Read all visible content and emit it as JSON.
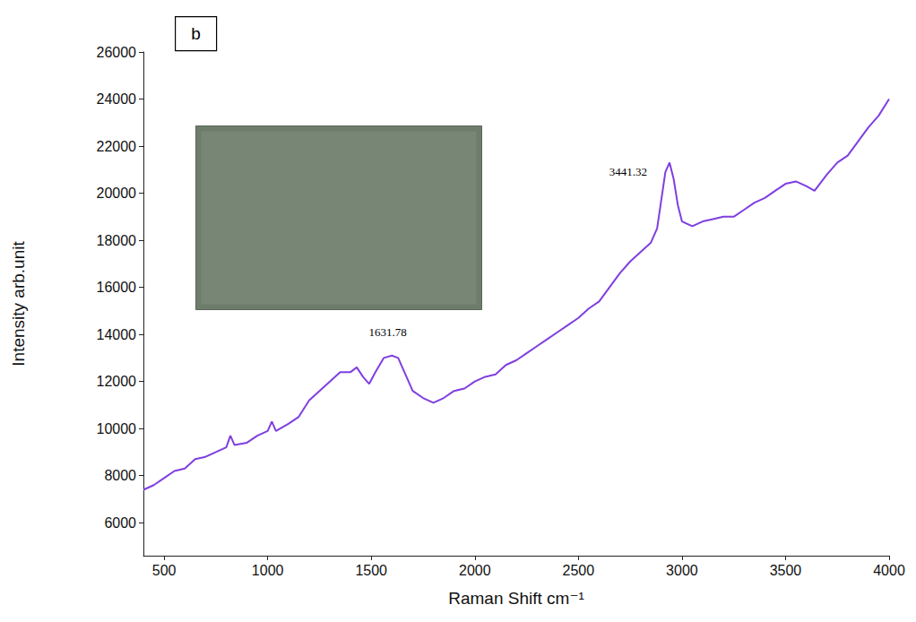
{
  "chart_data": {
    "type": "line",
    "panel_label": "b",
    "x_label": "Raman Shift cm⁻¹",
    "y_label": "Intensity arb.unit",
    "color": "#7f3fdf",
    "grid": false,
    "xlim": [
      400,
      4000
    ],
    "xticks": [
      500,
      1000,
      1500,
      2000,
      2500,
      3000,
      3500,
      4000
    ],
    "ylim": [
      4600,
      26000
    ],
    "yticks": [
      6000,
      8000,
      10000,
      12000,
      14000,
      16000,
      18000,
      20000,
      22000,
      24000,
      26000
    ],
    "x": [
      400,
      450,
      500,
      550,
      600,
      650,
      700,
      750,
      800,
      820,
      840,
      900,
      950,
      1000,
      1020,
      1040,
      1100,
      1150,
      1200,
      1250,
      1300,
      1350,
      1400,
      1430,
      1460,
      1490,
      1520,
      1560,
      1600,
      1630,
      1660,
      1700,
      1750,
      1800,
      1850,
      1900,
      1950,
      2000,
      2050,
      2100,
      2150,
      2200,
      2250,
      2300,
      2350,
      2400,
      2450,
      2500,
      2550,
      2600,
      2650,
      2700,
      2750,
      2800,
      2850,
      2880,
      2900,
      2920,
      2940,
      2960,
      2980,
      3000,
      3050,
      3100,
      3150,
      3200,
      3250,
      3300,
      3350,
      3400,
      3450,
      3500,
      3550,
      3600,
      3640,
      3700,
      3750,
      3800,
      3850,
      3900,
      3950,
      4000
    ],
    "values": [
      7400,
      7600,
      7900,
      8200,
      8300,
      8700,
      8800,
      9000,
      9200,
      9700,
      9300,
      9400,
      9700,
      9900,
      10300,
      9900,
      10200,
      10500,
      11200,
      11600,
      12000,
      12400,
      12400,
      12600,
      12200,
      11900,
      12400,
      13000,
      13100,
      13000,
      12400,
      11600,
      11300,
      11100,
      11300,
      11600,
      11700,
      12000,
      12200,
      12300,
      12700,
      12900,
      13200,
      13500,
      13800,
      14100,
      14400,
      14700,
      15100,
      15400,
      16000,
      16600,
      17100,
      17500,
      17900,
      18500,
      19700,
      20900,
      21300,
      20600,
      19500,
      18800,
      18600,
      18800,
      18900,
      19000,
      19000,
      19300,
      19600,
      19800,
      20100,
      20400,
      20500,
      20300,
      20100,
      20800,
      21300,
      21600,
      22200,
      22800,
      23300,
      24000
    ],
    "annotations": [
      {
        "text": "1631.78",
        "x": 1580,
        "y": 14100
      },
      {
        "text": "3441.32",
        "x": 2740,
        "y": 20900
      }
    ]
  }
}
